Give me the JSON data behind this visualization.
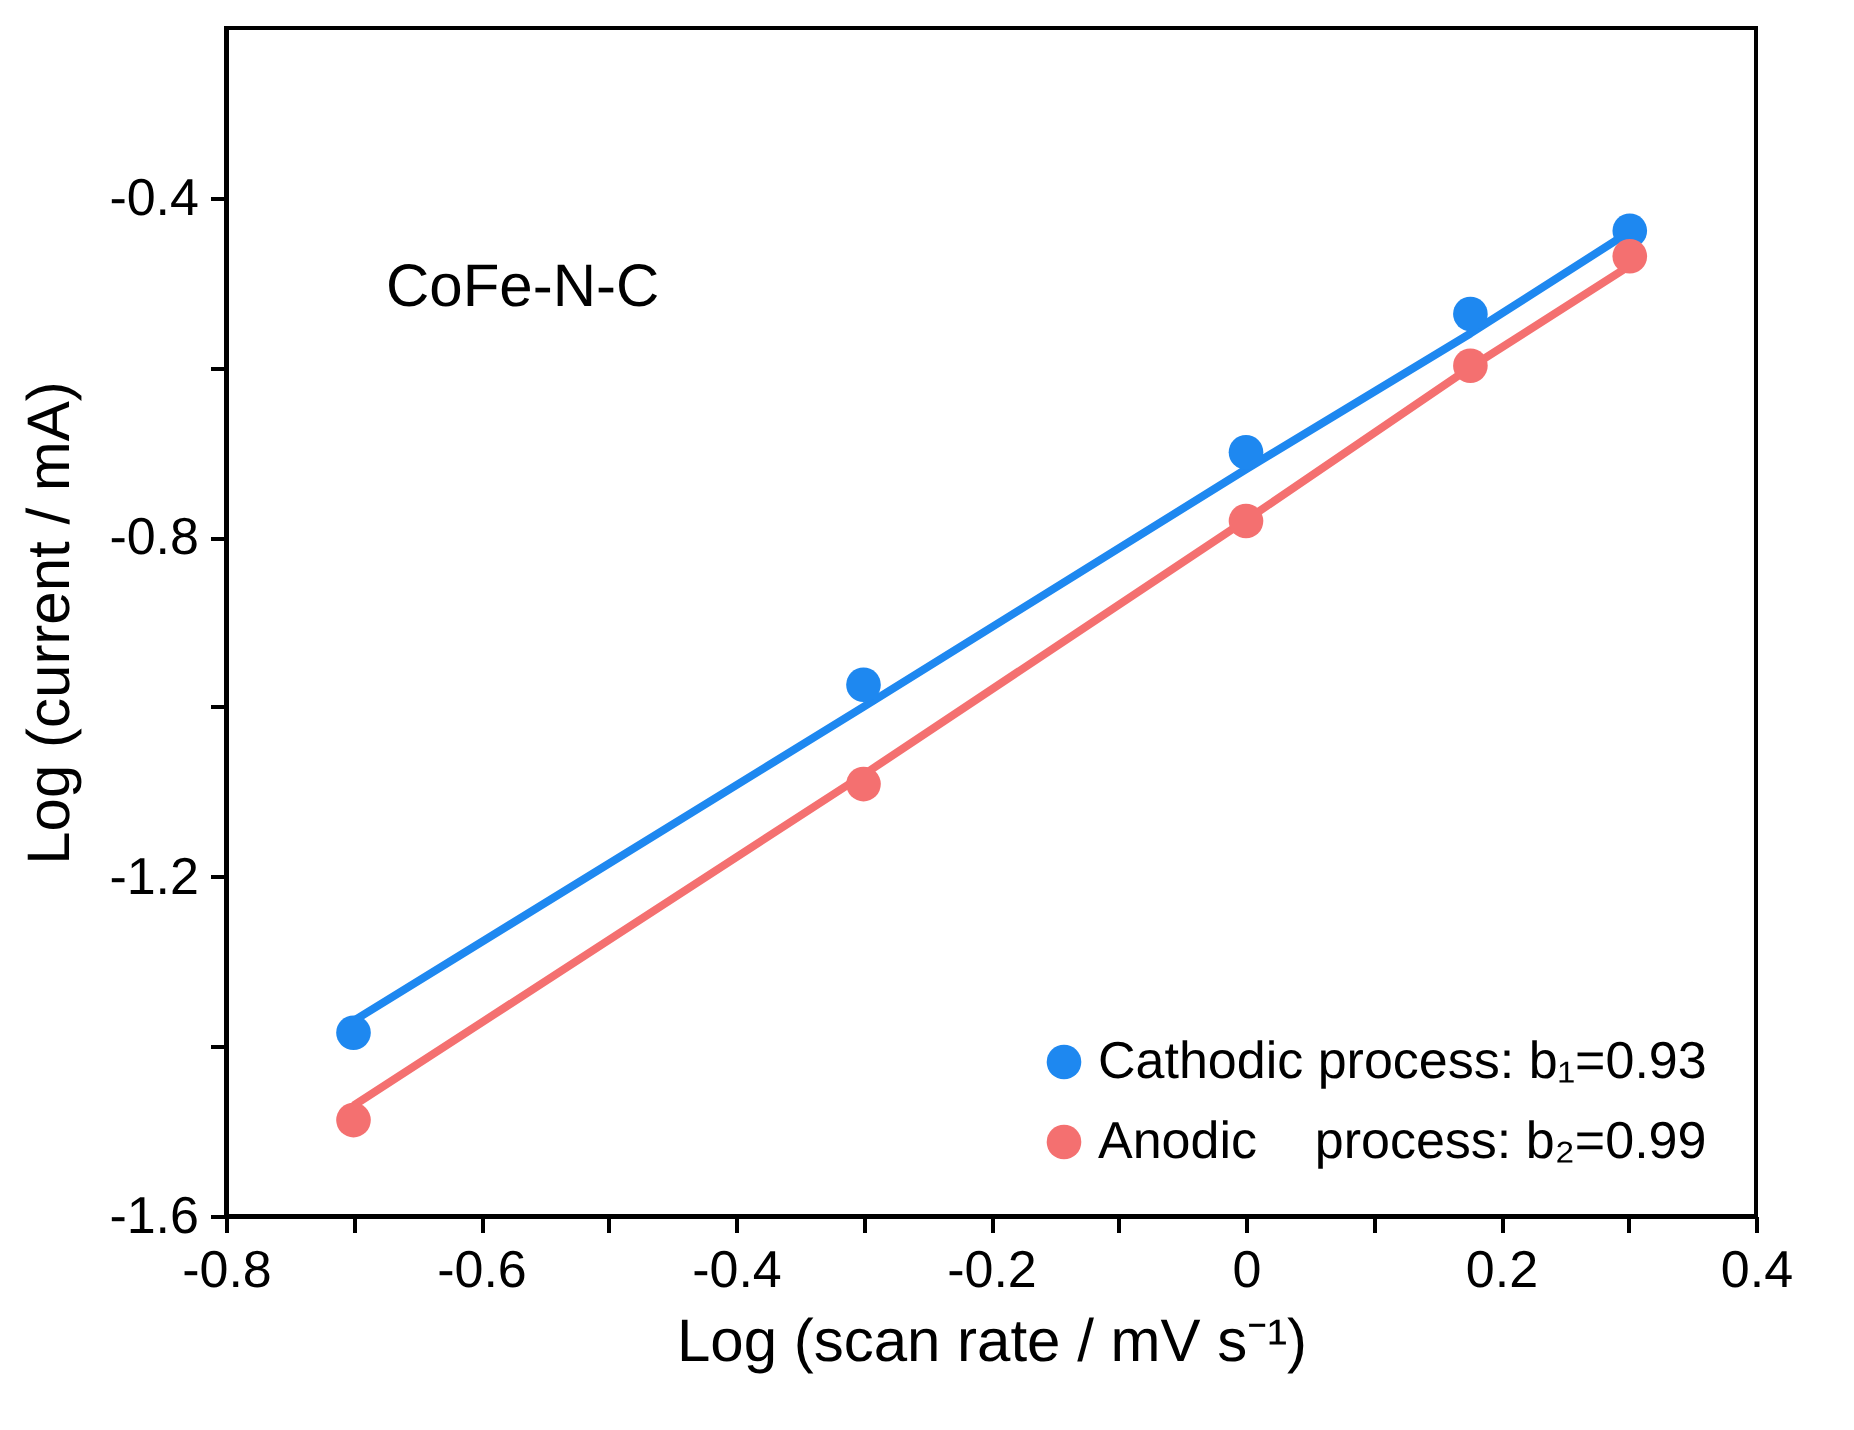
{
  "chart_data": {
    "type": "scatter",
    "xlabel": "Log (scan rate / mV s⁻¹)",
    "ylabel": "Log (current / mA)",
    "annotations": [
      "CoFe-N-C"
    ],
    "xlim": [
      -0.8,
      0.4
    ],
    "ylim": [
      -1.6,
      -0.2
    ],
    "xticks": [
      -0.8,
      {
        "value": -0.7,
        "label": null
      },
      -0.6,
      {
        "value": -0.5,
        "label": null
      },
      -0.4,
      {
        "value": -0.3,
        "label": null
      },
      -0.2,
      {
        "value": -0.1,
        "label": null
      },
      0.0,
      {
        "value": 0.1,
        "label": null
      },
      0.2,
      {
        "value": 0.3,
        "label": null
      },
      0.4
    ],
    "yticks": [
      -1.6,
      {
        "value": -1.4,
        "label": null
      },
      -1.2,
      {
        "value": -1.0,
        "label": null
      },
      -0.8,
      {
        "value": -0.6,
        "label": null
      },
      -0.4
    ],
    "x": [
      -0.7,
      -0.3,
      0.0,
      0.176,
      0.301
    ],
    "marker": "circle",
    "legend": "bottom right",
    "grid": false,
    "series": [
      {
        "name": "Cathodic process: b₁=0.93",
        "color": "#1e88f0",
        "values": [
          -1.384,
          -0.974,
          -0.7,
          -0.537,
          -0.439
        ]
      },
      {
        "name": "Anodic    process: b₂=0.99",
        "color": "#f47070",
        "values": [
          -1.487,
          -1.091,
          -0.781,
          -0.598,
          -0.469
        ]
      },
      {
        "type": "line",
        "marker": "none",
        "color": "#1e88f0",
        "values": [
          -1.37,
          -1.0,
          -0.72,
          -0.56,
          -0.44
        ]
      },
      {
        "type": "line",
        "marker": "none",
        "color": "#f47070",
        "values": [
          -1.47,
          -1.08,
          -0.78,
          -0.6,
          -0.48
        ]
      }
    ]
  }
}
